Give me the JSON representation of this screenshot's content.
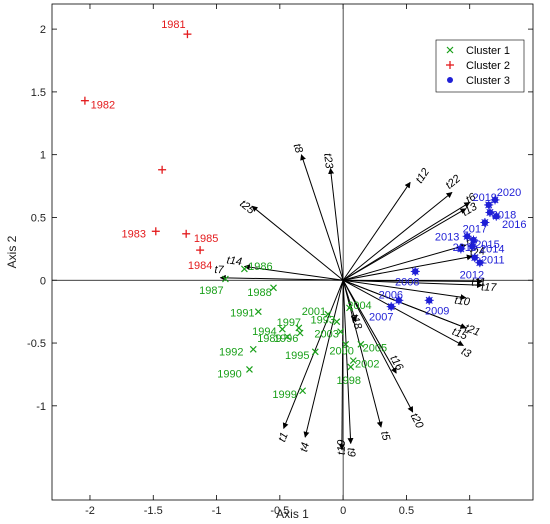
{
  "chart_data": {
    "type": "scatter",
    "title": "",
    "xlabel": "Axis 1",
    "ylabel": "Axis 2",
    "xlim": [
      -2.3,
      1.5
    ],
    "ylim": [
      -1.75,
      2.2
    ],
    "xticks": [
      -2,
      -1.5,
      -1,
      -0.5,
      0,
      0.5,
      1
    ],
    "xtick_labels": [
      "-2",
      "-1.5",
      "-1",
      "-0.5",
      "0",
      "0.5",
      "1"
    ],
    "yticks": [
      -1,
      -0.5,
      0,
      0.5,
      1,
      1.5,
      2
    ],
    "ytick_labels": [
      "-1",
      "-0.5",
      "0",
      "0.5",
      "1",
      "1.5",
      "2"
    ],
    "grid": false,
    "legend_position": "top-right",
    "colors": {
      "cluster1": "#1aa01a",
      "cluster2": "#e31a1c",
      "cluster3": "#1f1fd6",
      "arrow": "#000000"
    },
    "series": [
      {
        "name": "Cluster 1",
        "marker": "x",
        "color": "#1aa01a",
        "points": [
          {
            "label": "1986",
            "x": -0.78,
            "y": 0.09
          },
          {
            "label": "1987",
            "x": -0.93,
            "y": 0.01
          },
          {
            "label": "1988",
            "x": -0.55,
            "y": -0.06
          },
          {
            "label": "1991",
            "x": -0.67,
            "y": -0.25
          },
          {
            "label": "1997",
            "x": -0.35,
            "y": -0.38
          },
          {
            "label": "1994",
            "x": -0.48,
            "y": -0.39
          },
          {
            "label": "1989",
            "x": -0.44,
            "y": -0.45
          },
          {
            "label": "1996",
            "x": -0.34,
            "y": -0.42
          },
          {
            "label": "1992",
            "x": -0.71,
            "y": -0.55
          },
          {
            "label": "1995",
            "x": -0.22,
            "y": -0.57
          },
          {
            "label": "1990",
            "x": -0.74,
            "y": -0.71
          },
          {
            "label": "1999",
            "x": -0.32,
            "y": -0.88
          },
          {
            "label": "2001",
            "x": -0.12,
            "y": -0.27
          },
          {
            "label": "1993",
            "x": -0.05,
            "y": -0.33
          },
          {
            "label": "2003",
            "x": -0.02,
            "y": -0.41
          },
          {
            "label": "2000",
            "x": 0.02,
            "y": -0.51
          },
          {
            "label": "2004",
            "x": 0.05,
            "y": -0.22
          },
          {
            "label": "2002",
            "x": 0.08,
            "y": -0.64
          },
          {
            "label": "1998",
            "x": 0.06,
            "y": -0.69
          },
          {
            "label": "2005",
            "x": 0.14,
            "y": -0.51
          }
        ]
      },
      {
        "name": "Cluster 2",
        "marker": "+",
        "color": "#e31a1c",
        "points": [
          {
            "label": "1981",
            "x": -1.23,
            "y": 1.96
          },
          {
            "label": "1982",
            "x": -2.04,
            "y": 1.43
          },
          {
            "label": "",
            "x": -1.43,
            "y": 0.88
          },
          {
            "label": "1983",
            "x": -1.48,
            "y": 0.39
          },
          {
            "label": "1985",
            "x": -1.24,
            "y": 0.37
          },
          {
            "label": "1984",
            "x": -1.13,
            "y": 0.24
          }
        ]
      },
      {
        "name": "Cluster 3",
        "marker": "*",
        "color": "#1f1fd6",
        "points": [
          {
            "label": "2019",
            "x": 1.15,
            "y": 0.6
          },
          {
            "label": "2020",
            "x": 1.2,
            "y": 0.64
          },
          {
            "label": "2018",
            "x": 1.16,
            "y": 0.54
          },
          {
            "label": "2017",
            "x": 1.12,
            "y": 0.46
          },
          {
            "label": "2016",
            "x": 1.21,
            "y": 0.51
          },
          {
            "label": "2013",
            "x": 0.98,
            "y": 0.35
          },
          {
            "label": "2015",
            "x": 1.03,
            "y": 0.32
          },
          {
            "label": "2014",
            "x": 1.02,
            "y": 0.27
          },
          {
            "label": "2011",
            "x": 1.04,
            "y": 0.18
          },
          {
            "label": "2012",
            "x": 1.08,
            "y": 0.14
          },
          {
            "label": "2010",
            "x": 0.93,
            "y": 0.25
          },
          {
            "label": "2008",
            "x": 0.57,
            "y": 0.07
          },
          {
            "label": "2006",
            "x": 0.44,
            "y": -0.16
          },
          {
            "label": "2007",
            "x": 0.38,
            "y": -0.21
          },
          {
            "label": "2009",
            "x": 0.68,
            "y": -0.16
          }
        ]
      }
    ],
    "vectors": [
      {
        "name": "t1",
        "x": -0.47,
        "y": -1.18,
        "label_x": -0.47,
        "label_y": -1.25
      },
      {
        "name": "t2",
        "x": 0.97,
        "y": 0.28,
        "label_x": 1.01,
        "label_y": 0.3
      },
      {
        "name": "t3",
        "x": 0.95,
        "y": -0.52,
        "label_x": 0.97,
        "label_y": -0.58
      },
      {
        "name": "t4",
        "x": -0.3,
        "y": -1.25,
        "label_x": -0.3,
        "label_y": -1.33
      },
      {
        "name": "t5",
        "x": 0.3,
        "y": -1.17,
        "label_x": 0.33,
        "label_y": -1.24
      },
      {
        "name": "t6",
        "x": 1.0,
        "y": 0.62,
        "label_x": 1.01,
        "label_y": 0.65
      },
      {
        "name": "t7",
        "x": -0.97,
        "y": 0.02,
        "label_x": -0.98,
        "label_y": 0.08
      },
      {
        "name": "t8",
        "x": -0.33,
        "y": 1.0,
        "label_x": -0.36,
        "label_y": 1.05
      },
      {
        "name": "t9",
        "x": 0.06,
        "y": -1.3,
        "label_x": 0.06,
        "label_y": -1.37
      },
      {
        "name": "t10",
        "x": 0.97,
        "y": -0.14,
        "label_x": 0.94,
        "label_y": -0.17
      },
      {
        "name": "t11",
        "x": 1.1,
        "y": -0.01,
        "label_x": 1.07,
        "label_y": -0.02
      },
      {
        "name": "t12",
        "x": 0.53,
        "y": 0.78,
        "label_x": 0.63,
        "label_y": 0.83
      },
      {
        "name": "t13",
        "x": 0.97,
        "y": 0.57,
        "label_x": 1.0,
        "label_y": 0.56
      },
      {
        "name": "t14",
        "x": -0.78,
        "y": 0.11,
        "label_x": -0.86,
        "label_y": 0.15
      },
      {
        "name": "t15",
        "x": 0.97,
        "y": -0.38,
        "label_x": 0.92,
        "label_y": -0.43
      },
      {
        "name": "t16",
        "x": 0.42,
        "y": -0.74,
        "label_x": 0.42,
        "label_y": -0.66
      },
      {
        "name": "t17",
        "x": 1.1,
        "y": -0.04,
        "label_x": 1.15,
        "label_y": -0.06
      },
      {
        "name": "t18",
        "x": 0.1,
        "y": -0.33,
        "label_x": 0.1,
        "label_y": -0.33
      },
      {
        "name": "t19",
        "x": -0.01,
        "y": -1.35,
        "label_x": -0.01,
        "label_y": -1.33
      },
      {
        "name": "t20",
        "x": 0.55,
        "y": -1.05,
        "label_x": 0.58,
        "label_y": -1.12
      },
      {
        "name": "t21",
        "x": 0.97,
        "y": -0.38,
        "label_x": 1.02,
        "label_y": -0.4
      },
      {
        "name": "t22",
        "x": 0.86,
        "y": 0.7,
        "label_x": 0.87,
        "label_y": 0.78
      },
      {
        "name": "t23",
        "x": -0.1,
        "y": 0.89,
        "label_x": -0.12,
        "label_y": 0.95
      },
      {
        "name": "t24",
        "x": 1.02,
        "y": 0.19,
        "label_x": 1.06,
        "label_y": 0.22
      },
      {
        "name": "t25",
        "x": -0.72,
        "y": 0.59,
        "label_x": -0.76,
        "label_y": 0.58
      }
    ]
  }
}
